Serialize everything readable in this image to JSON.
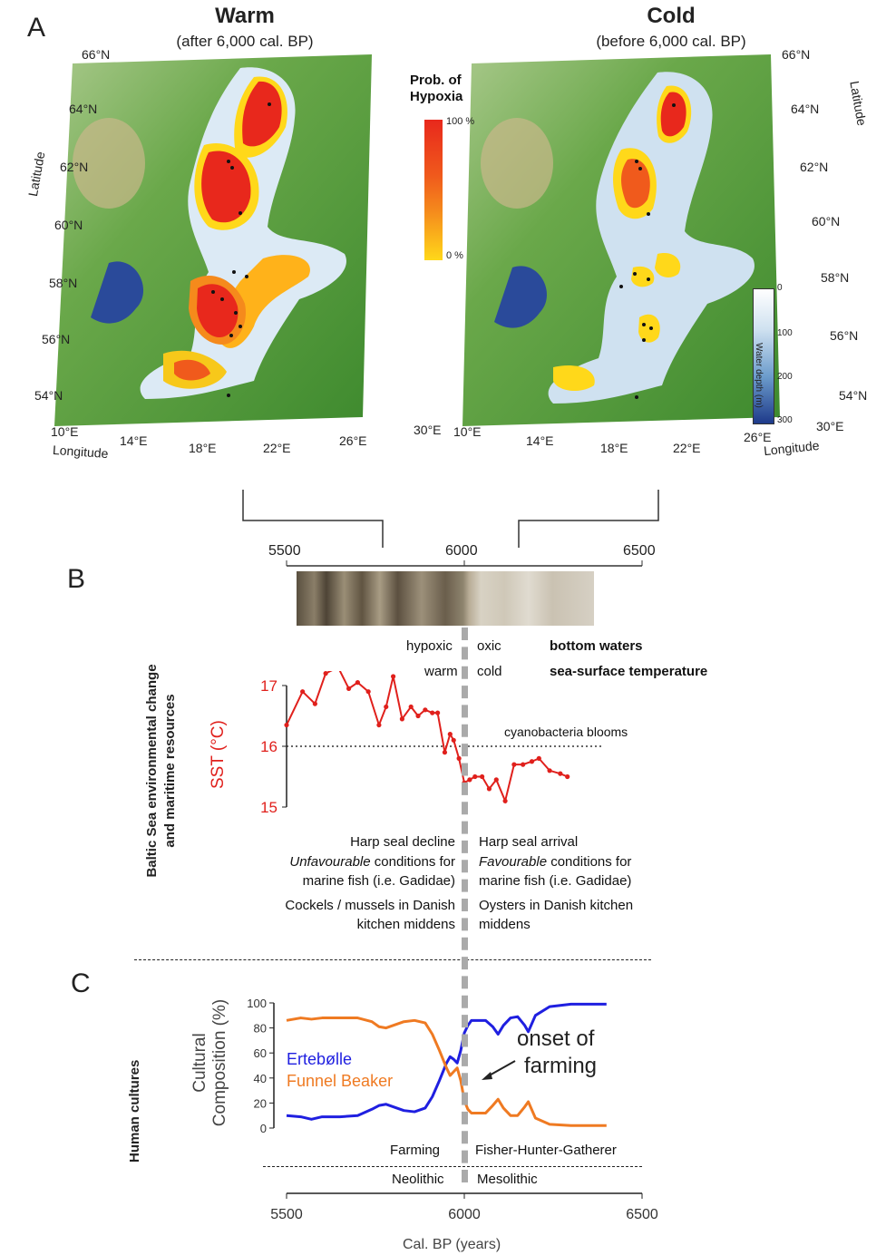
{
  "panel_a": {
    "letter": "A",
    "warm_title": "Warm",
    "warm_subtitle": "(after 6,000 cal. BP)",
    "cold_title": "Cold",
    "cold_subtitle": "(before 6,000 cal. BP)",
    "latitude_label": "Latitude",
    "longitude_label": "Longitude",
    "lat_ticks_left": [
      "66°N",
      "64°N",
      "62°N",
      "60°N",
      "58°N",
      "56°N",
      "54°N"
    ],
    "lat_ticks_right": [
      "66°N",
      "64°N",
      "62°N",
      "60°N",
      "58°N",
      "56°N",
      "54°N"
    ],
    "lon_ticks_left": [
      "10°E",
      "14°E",
      "18°E",
      "22°E",
      "26°E",
      "30°E"
    ],
    "lon_ticks_right": [
      "10°E",
      "14°E",
      "18°E",
      "22°E",
      "26°E",
      "30°E"
    ],
    "hypoxia_legend": {
      "title_line1": "Prob. of",
      "title_line2": "Hypoxia",
      "max": "100 %",
      "min": "0 %"
    },
    "depth_legend": {
      "title": "Water depth (m)",
      "ticks": [
        "0",
        "100",
        "200",
        "300"
      ]
    },
    "colors": {
      "hypoxia_high": "#e8281c",
      "hypoxia_mid": "#f58a1c",
      "hypoxia_low": "#ffd81a",
      "water": "#dceaf5",
      "deep_water": "#2a4a9a"
    }
  },
  "panel_b": {
    "letter": "B",
    "side_label_line1": "Baltic Sea environmental change",
    "side_label_line2": "and maritime resources",
    "core_axis_ticks": [
      "5500",
      "6000",
      "6500"
    ],
    "bottom_waters": {
      "left": "hypoxic",
      "right": "oxic",
      "label": "bottom waters"
    },
    "sst_row": {
      "left": "warm",
      "right": "cold",
      "label": "sea-surface temperature"
    },
    "threshold_label": "cyanobacteria blooms",
    "left_notes": {
      "n1": "Harp seal decline",
      "n2a": "Unfavourable",
      "n2b": " conditions for",
      "n3": "marine  fish (i.e. Gadidae)",
      "n4": "Cockels / mussels in Danish",
      "n5": "kitchen middens"
    },
    "right_notes": {
      "n1": "Harp seal arrival",
      "n2a": "Favourable",
      "n2b": " conditions for",
      "n3": "marine  fish (i.e. Gadidae)",
      "n4": "Oysters in Danish kitchen",
      "n5": "middens"
    },
    "color": "#e0201c"
  },
  "panel_c": {
    "letter": "C",
    "side_label": "Human cultures",
    "onset_line1": "onset of",
    "onset_line2": "farming",
    "left_phase": "Farming",
    "right_phase": "Fisher-Hunter-Gatherer",
    "left_period": "Neolithic",
    "right_period": "Mesolithic"
  },
  "chart_data": [
    {
      "type": "line",
      "ylabel": "SST (°C)",
      "xlim": [
        5500,
        6500
      ],
      "ylim": [
        15,
        17
      ],
      "yticks": [
        "15",
        "16",
        "17"
      ],
      "threshold": 16,
      "threshold_label": "cyanobacteria blooms",
      "divider_x": 6000,
      "series": [
        {
          "color": "#e0201c",
          "x": [
            5500,
            5545,
            5580,
            5610,
            5645,
            5675,
            5700,
            5730,
            5760,
            5780,
            5800,
            5825,
            5850,
            5870,
            5890,
            5910,
            5925,
            5945,
            5960,
            5970,
            5985,
            6000,
            6015,
            6030,
            6050,
            6070,
            6090,
            6115,
            6140,
            6165,
            6190,
            6210,
            6240,
            6270,
            6290
          ],
          "y": [
            16.35,
            16.9,
            16.7,
            17.2,
            17.3,
            16.95,
            17.05,
            16.9,
            16.35,
            16.65,
            17.15,
            16.45,
            16.65,
            16.5,
            16.6,
            16.55,
            16.55,
            15.9,
            16.2,
            16.1,
            15.8,
            15.4,
            15.45,
            15.5,
            15.5,
            15.3,
            15.45,
            15.1,
            15.7,
            15.7,
            15.75,
            15.8,
            15.6,
            15.55,
            15.5
          ]
        }
      ]
    },
    {
      "type": "line",
      "ylabel": "Cultural Composition (%)",
      "xlabel": "Cal. BP (years)",
      "xlim": [
        5500,
        6500
      ],
      "ylim": [
        0,
        100
      ],
      "xticks": [
        "5500",
        "6000",
        "6500"
      ],
      "yticks": [
        "0",
        "20",
        "40",
        "60",
        "80",
        "100"
      ],
      "series": [
        {
          "name": "Ertebølle",
          "color": "#1f1fe0",
          "x": [
            5500,
            5540,
            5570,
            5600,
            5650,
            5700,
            5740,
            5760,
            5780,
            5800,
            5830,
            5860,
            5890,
            5910,
            5930,
            5950,
            5960,
            5970,
            5980,
            5990,
            6000,
            6010,
            6020,
            6040,
            6060,
            6080,
            6095,
            6110,
            6130,
            6150,
            6170,
            6180,
            6200,
            6240,
            6300,
            6400
          ],
          "y": [
            10,
            9,
            7,
            9,
            9,
            10,
            15,
            18,
            19,
            17,
            14,
            13,
            16,
            25,
            38,
            52,
            57,
            55,
            52,
            62,
            76,
            82,
            86,
            86,
            86,
            81,
            75,
            82,
            88,
            89,
            82,
            77,
            90,
            97,
            99,
            99
          ]
        },
        {
          "name": "Funnel Beaker",
          "color": "#ef7a22",
          "x": [
            5500,
            5540,
            5570,
            5600,
            5650,
            5700,
            5740,
            5760,
            5780,
            5800,
            5830,
            5860,
            5890,
            5910,
            5930,
            5950,
            5960,
            5970,
            5980,
            5990,
            6000,
            6010,
            6020,
            6040,
            6060,
            6080,
            6095,
            6110,
            6130,
            6150,
            6170,
            6180,
            6200,
            6240,
            6300,
            6400
          ],
          "y": [
            86,
            88,
            87,
            88,
            88,
            88,
            85,
            81,
            80,
            82,
            85,
            86,
            84,
            75,
            62,
            48,
            42,
            45,
            48,
            38,
            22,
            15,
            12,
            12,
            12,
            18,
            23,
            16,
            10,
            10,
            17,
            21,
            8,
            3,
            2,
            2
          ]
        }
      ]
    }
  ]
}
